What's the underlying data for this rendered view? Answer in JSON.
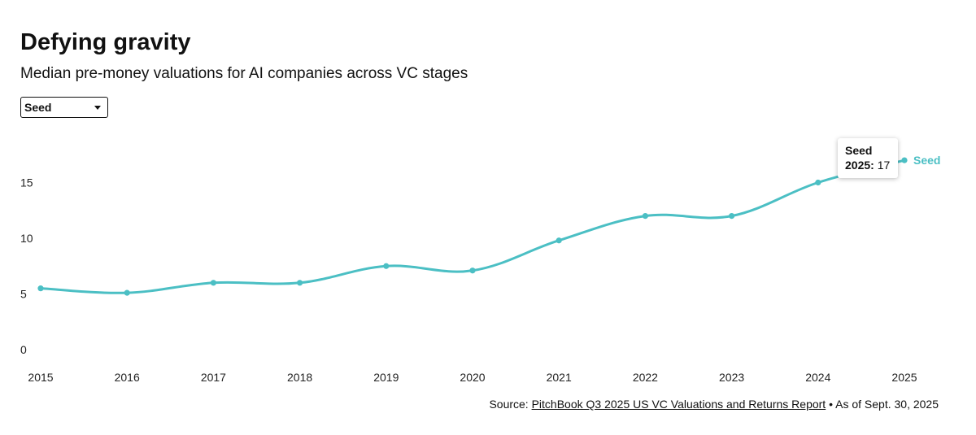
{
  "header": {
    "title": "Defying gravity",
    "subtitle": "Median pre-money valuations for AI companies across VC stages"
  },
  "stage_select": {
    "selected": "Seed"
  },
  "tooltip": {
    "series": "Seed",
    "year": "2025:",
    "value": "17"
  },
  "footer": {
    "source_prefix": "Source: ",
    "source_link": "PitchBook Q3 2025 US VC Valuations and Returns Report",
    "bullet": " • ",
    "as_of": "As of Sept. 30, 2025"
  },
  "colors": {
    "series": "#4bbfc4",
    "text": "#111111"
  },
  "chart_data": {
    "type": "line",
    "title": "Defying gravity",
    "subtitle": "Median pre-money valuations for AI companies across VC stages",
    "xlabel": "",
    "ylabel": "",
    "ylim": [
      0,
      18
    ],
    "yticks": [
      "0",
      "5",
      "10",
      "15"
    ],
    "ytick_values": [
      0,
      5,
      10,
      15
    ],
    "x": [
      "2015",
      "2016",
      "2017",
      "2018",
      "2019",
      "2020",
      "2021",
      "2022",
      "2023",
      "2024",
      "2025"
    ],
    "series": [
      {
        "name": "Seed",
        "label": "Seed",
        "values": [
          5.5,
          5.1,
          6.0,
          6.0,
          7.5,
          7.1,
          9.8,
          12.0,
          12.0,
          15.0,
          17.0
        ]
      }
    ],
    "grid": false,
    "legend": "end-of-line label"
  }
}
